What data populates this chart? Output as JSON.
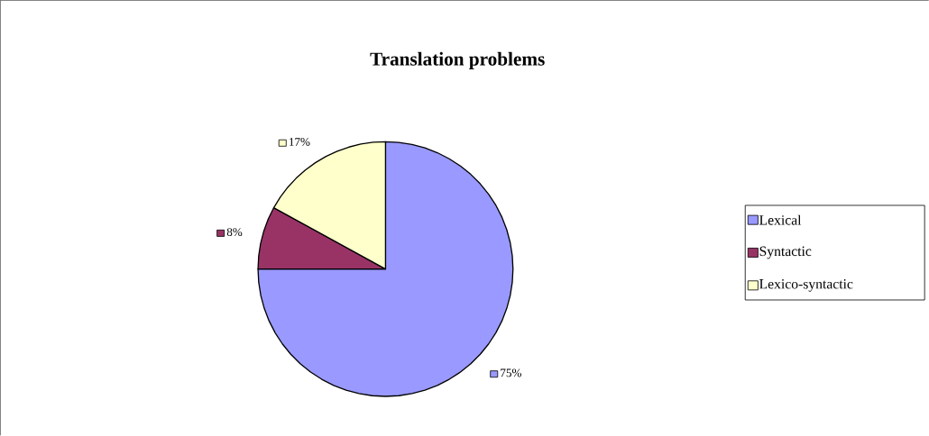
{
  "chart_data": {
    "type": "pie",
    "title": "Translation problems",
    "categories": [
      "Lexical",
      "Syntactic",
      "Lexico-syntactic"
    ],
    "values": [
      75,
      8,
      17
    ],
    "value_labels": [
      "75%",
      "8%",
      "17%"
    ],
    "colors": [
      "#9999ff",
      "#993366",
      "#ffffcc"
    ],
    "legend": "right"
  }
}
